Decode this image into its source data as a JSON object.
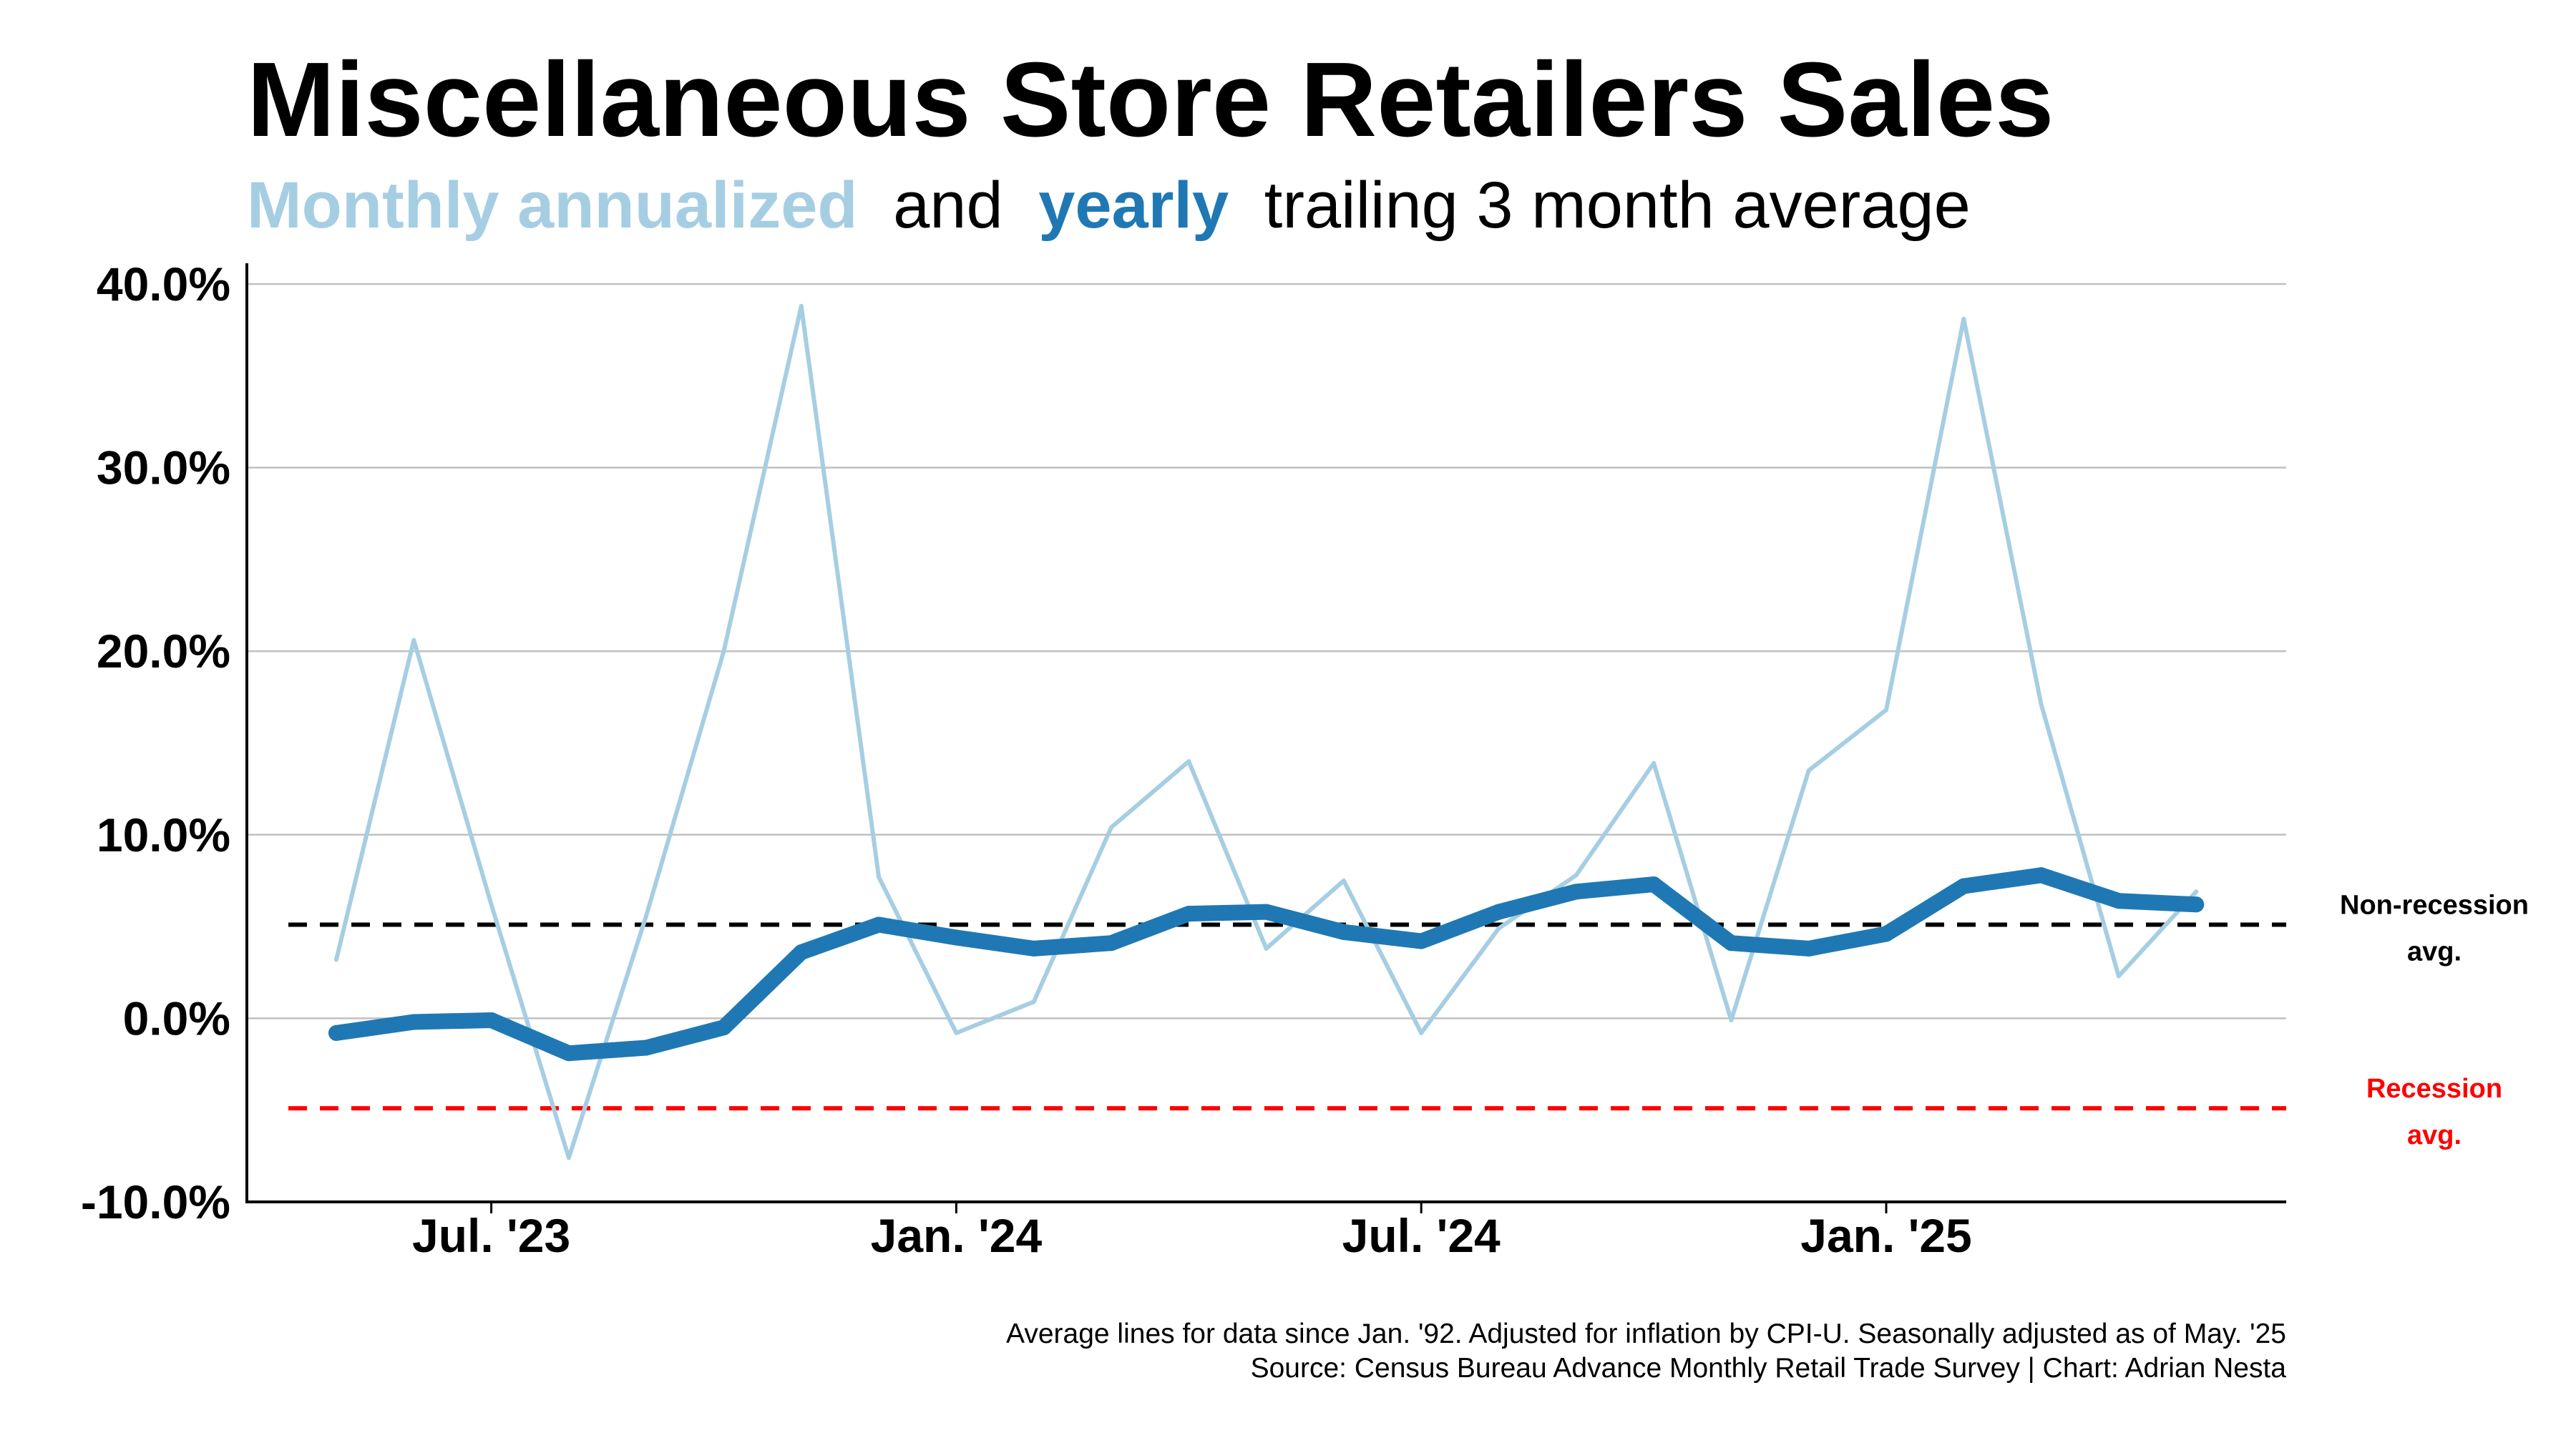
{
  "chart_data": {
    "type": "line",
    "title": "Miscellaneous Store Retailers Sales",
    "subtitle": {
      "monthly_label": "Monthly annualized",
      "and_text": "and",
      "yearly_label": "yearly",
      "rest_text": "trailing 3 month average"
    },
    "colors": {
      "monthly": "#a6cee3",
      "yearly": "#1f78b4",
      "non_recession": "#000000",
      "recession": "#ff0000",
      "grid": "#c0c0c0"
    },
    "x": [
      "2023-05",
      "2023-06",
      "2023-07",
      "2023-08",
      "2023-09",
      "2023-10",
      "2023-11",
      "2023-12",
      "2024-01",
      "2024-02",
      "2024-03",
      "2024-04",
      "2024-05",
      "2024-06",
      "2024-07",
      "2024-08",
      "2024-09",
      "2024-10",
      "2024-11",
      "2024-12",
      "2025-01",
      "2025-02",
      "2025-03",
      "2025-04",
      "2025-05"
    ],
    "x_ticks": [
      {
        "label": "Jul. '23",
        "at": "2023-07"
      },
      {
        "label": "Jan. '24",
        "at": "2024-01"
      },
      {
        "label": "Jul. '24",
        "at": "2024-07"
      },
      {
        "label": "Jan. '25",
        "at": "2025-01"
      }
    ],
    "series": [
      {
        "name": "Monthly annualized",
        "values": [
          3.2,
          20.6,
          6.2,
          -7.6,
          5.6,
          20.0,
          38.8,
          7.7,
          -0.8,
          0.9,
          10.4,
          14.0,
          3.8,
          7.5,
          -0.8,
          4.9,
          7.8,
          13.9,
          -0.1,
          13.5,
          16.8,
          38.1,
          17.1,
          2.3,
          6.9
        ]
      },
      {
        "name": "yearly",
        "values": [
          -0.8,
          -0.2,
          -0.1,
          -1.9,
          -1.6,
          -0.5,
          3.6,
          5.1,
          4.4,
          3.8,
          4.1,
          5.7,
          5.8,
          4.7,
          4.2,
          5.8,
          6.9,
          7.3,
          4.1,
          3.8,
          4.6,
          7.2,
          7.8,
          6.4,
          6.2
        ]
      }
    ],
    "ylim": [
      -10,
      41
    ],
    "y_ticks": [
      {
        "value": 40,
        "label": "40.0%"
      },
      {
        "value": 30,
        "label": "30.0%"
      },
      {
        "value": 20,
        "label": "20.0%"
      },
      {
        "value": 10,
        "label": "10.0%"
      },
      {
        "value": 0,
        "label": "0.0%"
      },
      {
        "value": -10,
        "label": "-10.0%"
      }
    ],
    "grid": true,
    "reference_lines": [
      {
        "name": "Non-recession avg.",
        "line1": "Non-recession",
        "line2": "avg.",
        "value": 5.1,
        "color": "#000000"
      },
      {
        "name": "Recession avg.",
        "line1": "Recession",
        "line2": "avg.",
        "value": -4.9,
        "color": "#ff0000"
      }
    ],
    "footnotes": [
      "Average lines for data since Jan. '92. Adjusted for inflation by CPI-U. Seasonally adjusted as of May. '25",
      "Source: Census Bureau Advance Monthly Retail Trade Survey | Chart: Adrian Nesta"
    ]
  }
}
